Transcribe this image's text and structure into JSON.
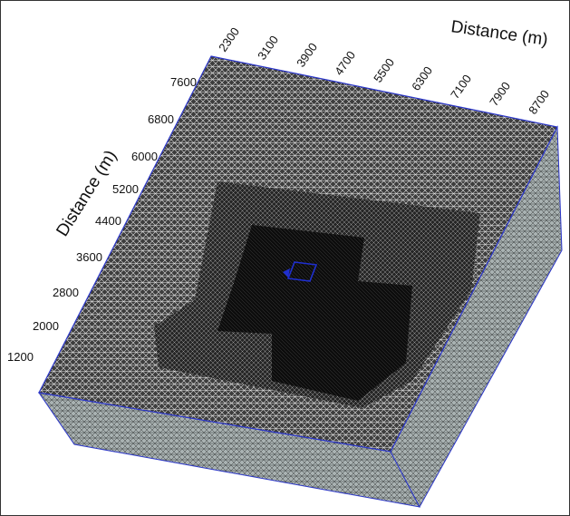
{
  "figure": {
    "top_axis": {
      "label": "Distance (m)",
      "ticks": [
        "2300",
        "3100",
        "3900",
        "4700",
        "5500",
        "6300",
        "7100",
        "7900",
        "8700"
      ]
    },
    "left_axis": {
      "label": "Distance (m)",
      "ticks": [
        "7600",
        "6800",
        "6000",
        "5200",
        "4400",
        "3600",
        "2800",
        "2000",
        "1200"
      ]
    },
    "colors": {
      "mesh_outline": "#2b36c9",
      "side_fill": "#9aa3a3",
      "top_fill": "#4a4a4a",
      "refined_zone": "#151515",
      "core_zone": "#0a0a0a",
      "target_box": "#1f2fcf"
    }
  }
}
